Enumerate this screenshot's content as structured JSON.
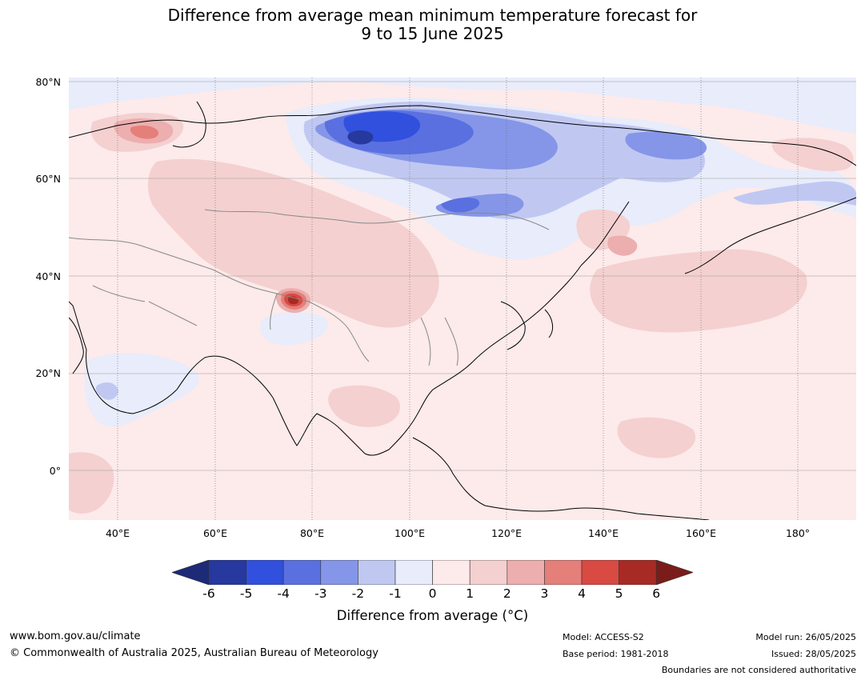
{
  "title_line1": "Difference from average mean minimum temperature forecast for",
  "title_line2": "9 to 15 June 2025",
  "lat_labels": [
    "80°N",
    "60°N",
    "40°N",
    "20°N",
    "0°"
  ],
  "lon_labels": [
    "40°E",
    "60°E",
    "80°E",
    "100°E",
    "120°E",
    "140°E",
    "160°E",
    "180°"
  ],
  "colorbar": {
    "ticks": [
      "-6",
      "-5",
      "-4",
      "-3",
      "-2",
      "-1",
      "0",
      "1",
      "2",
      "3",
      "4",
      "5",
      "6"
    ],
    "colors": [
      "#27389e",
      "#3050dd",
      "#5a70e0",
      "#8596e8",
      "#c0c8f2",
      "#e8ecfb",
      "#fdeaea",
      "#f4d0d0",
      "#ecaeae",
      "#e47f7a",
      "#d84a42",
      "#a82a24"
    ],
    "under_color": "#1c2a78",
    "over_color": "#7a1d1a",
    "label": "Difference from average (°C)"
  },
  "footer": {
    "website": "www.bom.gov.au/climate",
    "copyright": "© Commonwealth of Australia 2025, Australian Bureau of Meteorology",
    "model": "Model: ACCESS-S2",
    "base_period": "Base period: 1981-2018",
    "model_run": "Model run: 26/05/2025",
    "issued": "Issued: 28/05/2025",
    "disclaimer": "Boundaries are not considered authoritative"
  }
}
